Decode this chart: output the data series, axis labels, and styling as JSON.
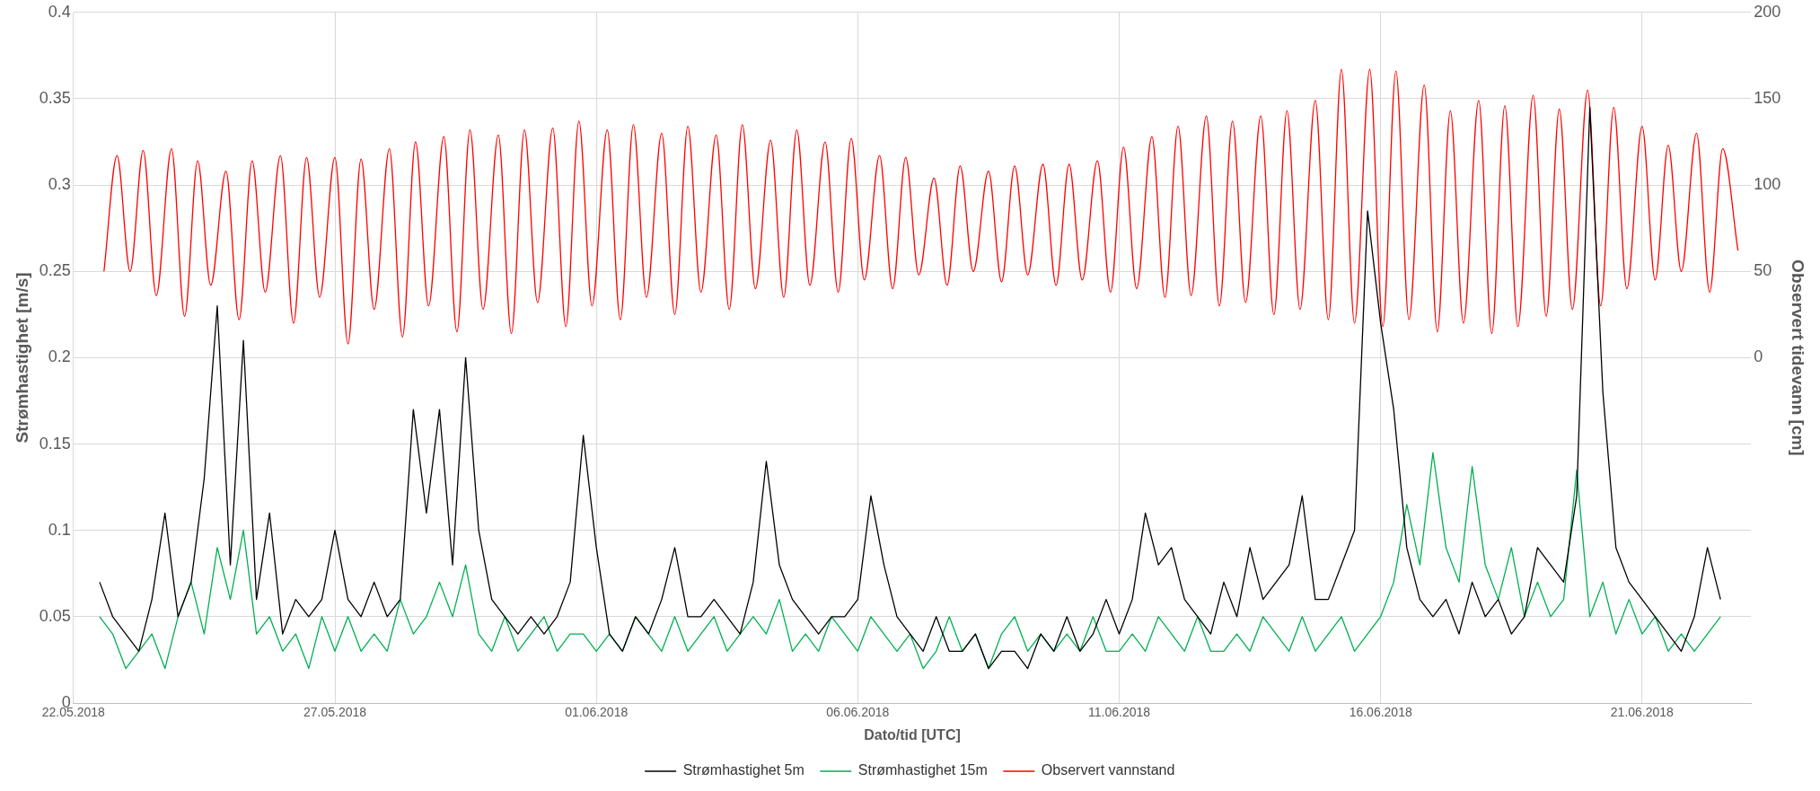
{
  "chart_data": {
    "type": "line",
    "xlabel": "Dato/tid [UTC]",
    "ylabel": "Strømhastighet [m/s]",
    "y2label": "Observert tidevann [cm]",
    "xlim": [
      "2018-05-22T00:00",
      "2018-06-23T02:00"
    ],
    "xticks": [
      {
        "value": "2018-05-22T00:00",
        "label": "22.05.2018"
      },
      {
        "value": "2018-05-27T00:00",
        "label": "27.05.2018"
      },
      {
        "value": "2018-06-01T00:00",
        "label": "01.06.2018"
      },
      {
        "value": "2018-06-06T00:00",
        "label": "06.06.2018"
      },
      {
        "value": "2018-06-11T00:00",
        "label": "11.06.2018"
      },
      {
        "value": "2018-06-16T00:00",
        "label": "16.06.2018"
      },
      {
        "value": "2018-06-21T00:00",
        "label": "21.06.2018"
      }
    ],
    "ylim": [
      0,
      0.4
    ],
    "yticks": [
      0,
      0.05,
      0.1,
      0.15,
      0.2,
      0.25,
      0.3,
      0.35,
      0.4
    ],
    "y2lim": [
      -200,
      200
    ],
    "y2ticks": [
      0,
      50,
      100,
      150,
      200
    ],
    "grid": true,
    "legend": "bottom",
    "marker": "none",
    "line_style": "solid",
    "x": [
      "2018-05-22T12:00",
      "2018-05-22T18:00",
      "2018-05-23T00:00",
      "2018-05-23T06:00",
      "2018-05-23T12:00",
      "2018-05-23T18:00",
      "2018-05-24T00:00",
      "2018-05-24T06:00",
      "2018-05-24T12:00",
      "2018-05-24T18:00",
      "2018-05-25T00:00",
      "2018-05-25T06:00",
      "2018-05-25T12:00",
      "2018-05-25T18:00",
      "2018-05-26T00:00",
      "2018-05-26T06:00",
      "2018-05-26T12:00",
      "2018-05-26T18:00",
      "2018-05-27T00:00",
      "2018-05-27T06:00",
      "2018-05-27T12:00",
      "2018-05-27T18:00",
      "2018-05-28T00:00",
      "2018-05-28T06:00",
      "2018-05-28T12:00",
      "2018-05-28T18:00",
      "2018-05-29T00:00",
      "2018-05-29T06:00",
      "2018-05-29T12:00",
      "2018-05-29T18:00",
      "2018-05-30T00:00",
      "2018-05-30T06:00",
      "2018-05-30T12:00",
      "2018-05-30T18:00",
      "2018-05-31T00:00",
      "2018-05-31T06:00",
      "2018-05-31T12:00",
      "2018-05-31T18:00",
      "2018-06-01T00:00",
      "2018-06-01T06:00",
      "2018-06-01T12:00",
      "2018-06-01T18:00",
      "2018-06-02T00:00",
      "2018-06-02T06:00",
      "2018-06-02T12:00",
      "2018-06-02T18:00",
      "2018-06-03T00:00",
      "2018-06-03T06:00",
      "2018-06-03T12:00",
      "2018-06-03T18:00",
      "2018-06-04T00:00",
      "2018-06-04T06:00",
      "2018-06-04T12:00",
      "2018-06-04T18:00",
      "2018-06-05T00:00",
      "2018-06-05T06:00",
      "2018-06-05T12:00",
      "2018-06-05T18:00",
      "2018-06-06T00:00",
      "2018-06-06T06:00",
      "2018-06-06T12:00",
      "2018-06-06T18:00",
      "2018-06-07T00:00",
      "2018-06-07T06:00",
      "2018-06-07T12:00",
      "2018-06-07T18:00",
      "2018-06-08T00:00",
      "2018-06-08T06:00",
      "2018-06-08T12:00",
      "2018-06-08T18:00",
      "2018-06-09T00:00",
      "2018-06-09T06:00",
      "2018-06-09T12:00",
      "2018-06-09T18:00",
      "2018-06-10T00:00",
      "2018-06-10T06:00",
      "2018-06-10T12:00",
      "2018-06-10T18:00",
      "2018-06-11T00:00",
      "2018-06-11T06:00",
      "2018-06-11T12:00",
      "2018-06-11T18:00",
      "2018-06-12T00:00",
      "2018-06-12T06:00",
      "2018-06-12T12:00",
      "2018-06-12T18:00",
      "2018-06-13T00:00",
      "2018-06-13T06:00",
      "2018-06-13T12:00",
      "2018-06-13T18:00",
      "2018-06-14T00:00",
      "2018-06-14T06:00",
      "2018-06-14T12:00",
      "2018-06-14T18:00",
      "2018-06-15T00:00",
      "2018-06-15T06:00",
      "2018-06-15T12:00",
      "2018-06-15T18:00",
      "2018-06-16T00:00",
      "2018-06-16T06:00",
      "2018-06-16T12:00",
      "2018-06-16T18:00",
      "2018-06-17T00:00",
      "2018-06-17T06:00",
      "2018-06-17T12:00",
      "2018-06-17T18:00",
      "2018-06-18T00:00",
      "2018-06-18T06:00",
      "2018-06-18T12:00",
      "2018-06-18T18:00",
      "2018-06-19T00:00",
      "2018-06-19T06:00",
      "2018-06-19T12:00",
      "2018-06-19T18:00",
      "2018-06-20T00:00",
      "2018-06-20T06:00",
      "2018-06-20T12:00",
      "2018-06-20T18:00",
      "2018-06-21T00:00",
      "2018-06-21T06:00",
      "2018-06-21T12:00",
      "2018-06-21T18:00",
      "2018-06-22T00:00",
      "2018-06-22T06:00",
      "2018-06-22T12:00"
    ],
    "series": [
      {
        "name": "Strømhastighet 5m",
        "color": "#000000",
        "values": [
          0.07,
          0.05,
          0.04,
          0.03,
          0.06,
          0.11,
          0.05,
          0.07,
          0.13,
          0.23,
          0.08,
          0.21,
          0.06,
          0.11,
          0.04,
          0.06,
          0.05,
          0.06,
          0.1,
          0.06,
          0.05,
          0.07,
          0.05,
          0.06,
          0.17,
          0.11,
          0.17,
          0.08,
          0.2,
          0.1,
          0.06,
          0.05,
          0.04,
          0.05,
          0.04,
          0.05,
          0.07,
          0.155,
          0.09,
          0.04,
          0.03,
          0.05,
          0.04,
          0.06,
          0.09,
          0.05,
          0.05,
          0.06,
          0.05,
          0.04,
          0.07,
          0.14,
          0.08,
          0.06,
          0.05,
          0.04,
          0.05,
          0.05,
          0.06,
          0.12,
          0.08,
          0.05,
          0.04,
          0.03,
          0.05,
          0.03,
          0.03,
          0.04,
          0.02,
          0.03,
          0.03,
          0.02,
          0.04,
          0.03,
          0.05,
          0.03,
          0.04,
          0.06,
          0.04,
          0.06,
          0.11,
          0.08,
          0.09,
          0.06,
          0.05,
          0.04,
          0.07,
          0.05,
          0.09,
          0.06,
          0.07,
          0.08,
          0.12,
          0.06,
          0.06,
          0.08,
          0.1,
          0.285,
          0.22,
          0.17,
          0.09,
          0.06,
          0.05,
          0.06,
          0.04,
          0.07,
          0.05,
          0.06,
          0.04,
          0.05,
          0.09,
          0.08,
          0.07,
          0.12,
          0.345,
          0.18,
          0.09,
          0.07,
          0.06,
          0.05,
          0.04,
          0.03,
          0.05,
          0.09,
          0.06
        ]
      },
      {
        "name": "Strømhastighet 15m",
        "color": "#00b050",
        "values": [
          0.05,
          0.04,
          0.02,
          0.03,
          0.04,
          0.02,
          0.05,
          0.07,
          0.04,
          0.09,
          0.06,
          0.1,
          0.04,
          0.05,
          0.03,
          0.04,
          0.02,
          0.05,
          0.03,
          0.05,
          0.03,
          0.04,
          0.03,
          0.06,
          0.04,
          0.05,
          0.07,
          0.05,
          0.08,
          0.04,
          0.03,
          0.05,
          0.03,
          0.04,
          0.05,
          0.03,
          0.04,
          0.04,
          0.03,
          0.04,
          0.03,
          0.05,
          0.04,
          0.03,
          0.05,
          0.03,
          0.04,
          0.05,
          0.03,
          0.04,
          0.05,
          0.04,
          0.06,
          0.03,
          0.04,
          0.03,
          0.05,
          0.04,
          0.03,
          0.05,
          0.04,
          0.03,
          0.04,
          0.02,
          0.03,
          0.05,
          0.03,
          0.04,
          0.02,
          0.04,
          0.05,
          0.03,
          0.04,
          0.03,
          0.04,
          0.03,
          0.05,
          0.03,
          0.03,
          0.04,
          0.03,
          0.05,
          0.04,
          0.03,
          0.05,
          0.03,
          0.03,
          0.04,
          0.03,
          0.05,
          0.04,
          0.03,
          0.05,
          0.03,
          0.04,
          0.05,
          0.03,
          0.04,
          0.05,
          0.07,
          0.115,
          0.08,
          0.145,
          0.09,
          0.07,
          0.137,
          0.08,
          0.06,
          0.09,
          0.05,
          0.07,
          0.05,
          0.06,
          0.135,
          0.05,
          0.07,
          0.04,
          0.06,
          0.04,
          0.05,
          0.03,
          0.04,
          0.03,
          0.04,
          0.05
        ]
      },
      {
        "name": "Observert vannstand",
        "color": "#ff0000",
        "axis": "y2",
        "x": [
          "2018-05-22T14:00",
          "2018-05-22T20:00",
          "2018-05-23T02:00",
          "2018-05-23T08:00",
          "2018-05-23T14:00",
          "2018-05-23T21:00",
          "2018-05-24T03:00",
          "2018-05-24T09:00",
          "2018-05-24T15:00",
          "2018-05-24T22:00",
          "2018-05-25T04:00",
          "2018-05-25T10:00",
          "2018-05-25T16:00",
          "2018-05-25T23:00",
          "2018-05-26T05:00",
          "2018-05-26T11:00",
          "2018-05-26T17:00",
          "2018-05-27T00:00",
          "2018-05-27T06:00",
          "2018-05-27T12:00",
          "2018-05-27T18:00",
          "2018-05-28T01:00",
          "2018-05-28T07:00",
          "2018-05-28T13:00",
          "2018-05-28T19:00",
          "2018-05-29T02:00",
          "2018-05-29T08:00",
          "2018-05-29T14:00",
          "2018-05-29T20:00",
          "2018-05-30T03:00",
          "2018-05-30T09:00",
          "2018-05-30T15:00",
          "2018-05-30T21:00",
          "2018-05-31T04:00",
          "2018-05-31T10:00",
          "2018-05-31T16:00",
          "2018-05-31T22:00",
          "2018-06-01T05:00",
          "2018-06-01T11:00",
          "2018-06-01T17:00",
          "2018-06-01T23:00",
          "2018-06-02T06:00",
          "2018-06-02T12:00",
          "2018-06-02T18:00",
          "2018-06-03T00:00",
          "2018-06-03T07:00",
          "2018-06-03T13:00",
          "2018-06-03T19:00",
          "2018-06-04T01:00",
          "2018-06-04T08:00",
          "2018-06-04T14:00",
          "2018-06-04T20:00",
          "2018-06-05T02:00",
          "2018-06-05T09:00",
          "2018-06-05T15:00",
          "2018-06-05T21:00",
          "2018-06-06T03:00",
          "2018-06-06T10:00",
          "2018-06-06T16:00",
          "2018-06-06T22:00",
          "2018-06-07T04:00",
          "2018-06-07T11:00",
          "2018-06-07T17:00",
          "2018-06-07T23:00",
          "2018-06-08T05:00",
          "2018-06-08T12:00",
          "2018-06-08T18:00",
          "2018-06-09T00:00",
          "2018-06-09T06:00",
          "2018-06-09T13:00",
          "2018-06-09T19:00",
          "2018-06-10T01:00",
          "2018-06-10T07:00",
          "2018-06-10T14:00",
          "2018-06-10T20:00",
          "2018-06-11T02:00",
          "2018-06-11T08:00",
          "2018-06-11T15:00",
          "2018-06-11T21:00",
          "2018-06-12T03:00",
          "2018-06-12T09:00",
          "2018-06-12T16:00",
          "2018-06-12T22:00",
          "2018-06-13T04:00",
          "2018-06-13T10:00",
          "2018-06-13T17:00",
          "2018-06-13T23:00",
          "2018-06-14T05:00",
          "2018-06-14T11:00",
          "2018-06-14T18:00",
          "2018-06-15T00:00",
          "2018-06-15T06:00",
          "2018-06-15T12:00",
          "2018-06-15T19:00",
          "2018-06-16T01:00",
          "2018-06-16T07:00",
          "2018-06-16T13:00",
          "2018-06-16T20:00",
          "2018-06-17T02:00",
          "2018-06-17T08:00",
          "2018-06-17T14:00",
          "2018-06-17T21:00",
          "2018-06-18T03:00",
          "2018-06-18T09:00",
          "2018-06-18T15:00",
          "2018-06-18T22:00",
          "2018-06-19T04:00",
          "2018-06-19T10:00",
          "2018-06-19T16:00",
          "2018-06-19T23:00",
          "2018-06-20T05:00",
          "2018-06-20T11:00",
          "2018-06-20T17:00",
          "2018-06-21T00:00",
          "2018-06-21T06:00",
          "2018-06-21T12:00",
          "2018-06-21T18:00",
          "2018-06-22T01:00",
          "2018-06-22T07:00",
          "2018-06-22T13:00",
          "2018-06-22T20:00"
        ],
        "values": [
          50,
          117,
          50,
          120,
          36,
          121,
          24,
          114,
          42,
          108,
          22,
          114,
          38,
          117,
          20,
          116,
          35,
          116,
          8,
          115,
          28,
          121,
          12,
          125,
          30,
          128,
          15,
          132,
          28,
          129,
          14,
          132,
          32,
          133,
          18,
          137,
          30,
          132,
          22,
          135,
          35,
          130,
          25,
          134,
          38,
          129,
          28,
          135,
          40,
          126,
          35,
          132,
          42,
          125,
          38,
          127,
          45,
          117,
          40,
          116,
          48,
          104,
          42,
          111,
          50,
          108,
          44,
          111,
          48,
          112,
          42,
          112,
          45,
          114,
          38,
          122,
          40,
          128,
          35,
          134,
          36,
          140,
          30,
          137,
          32,
          140,
          25,
          143,
          28,
          149,
          22,
          167,
          20,
          167,
          18,
          166,
          22,
          158,
          15,
          143,
          20,
          149,
          14,
          146,
          18,
          152,
          24,
          144,
          28,
          155,
          30,
          145,
          40,
          134,
          45,
          123,
          50,
          130,
          38,
          121,
          62
        ]
      }
    ]
  }
}
